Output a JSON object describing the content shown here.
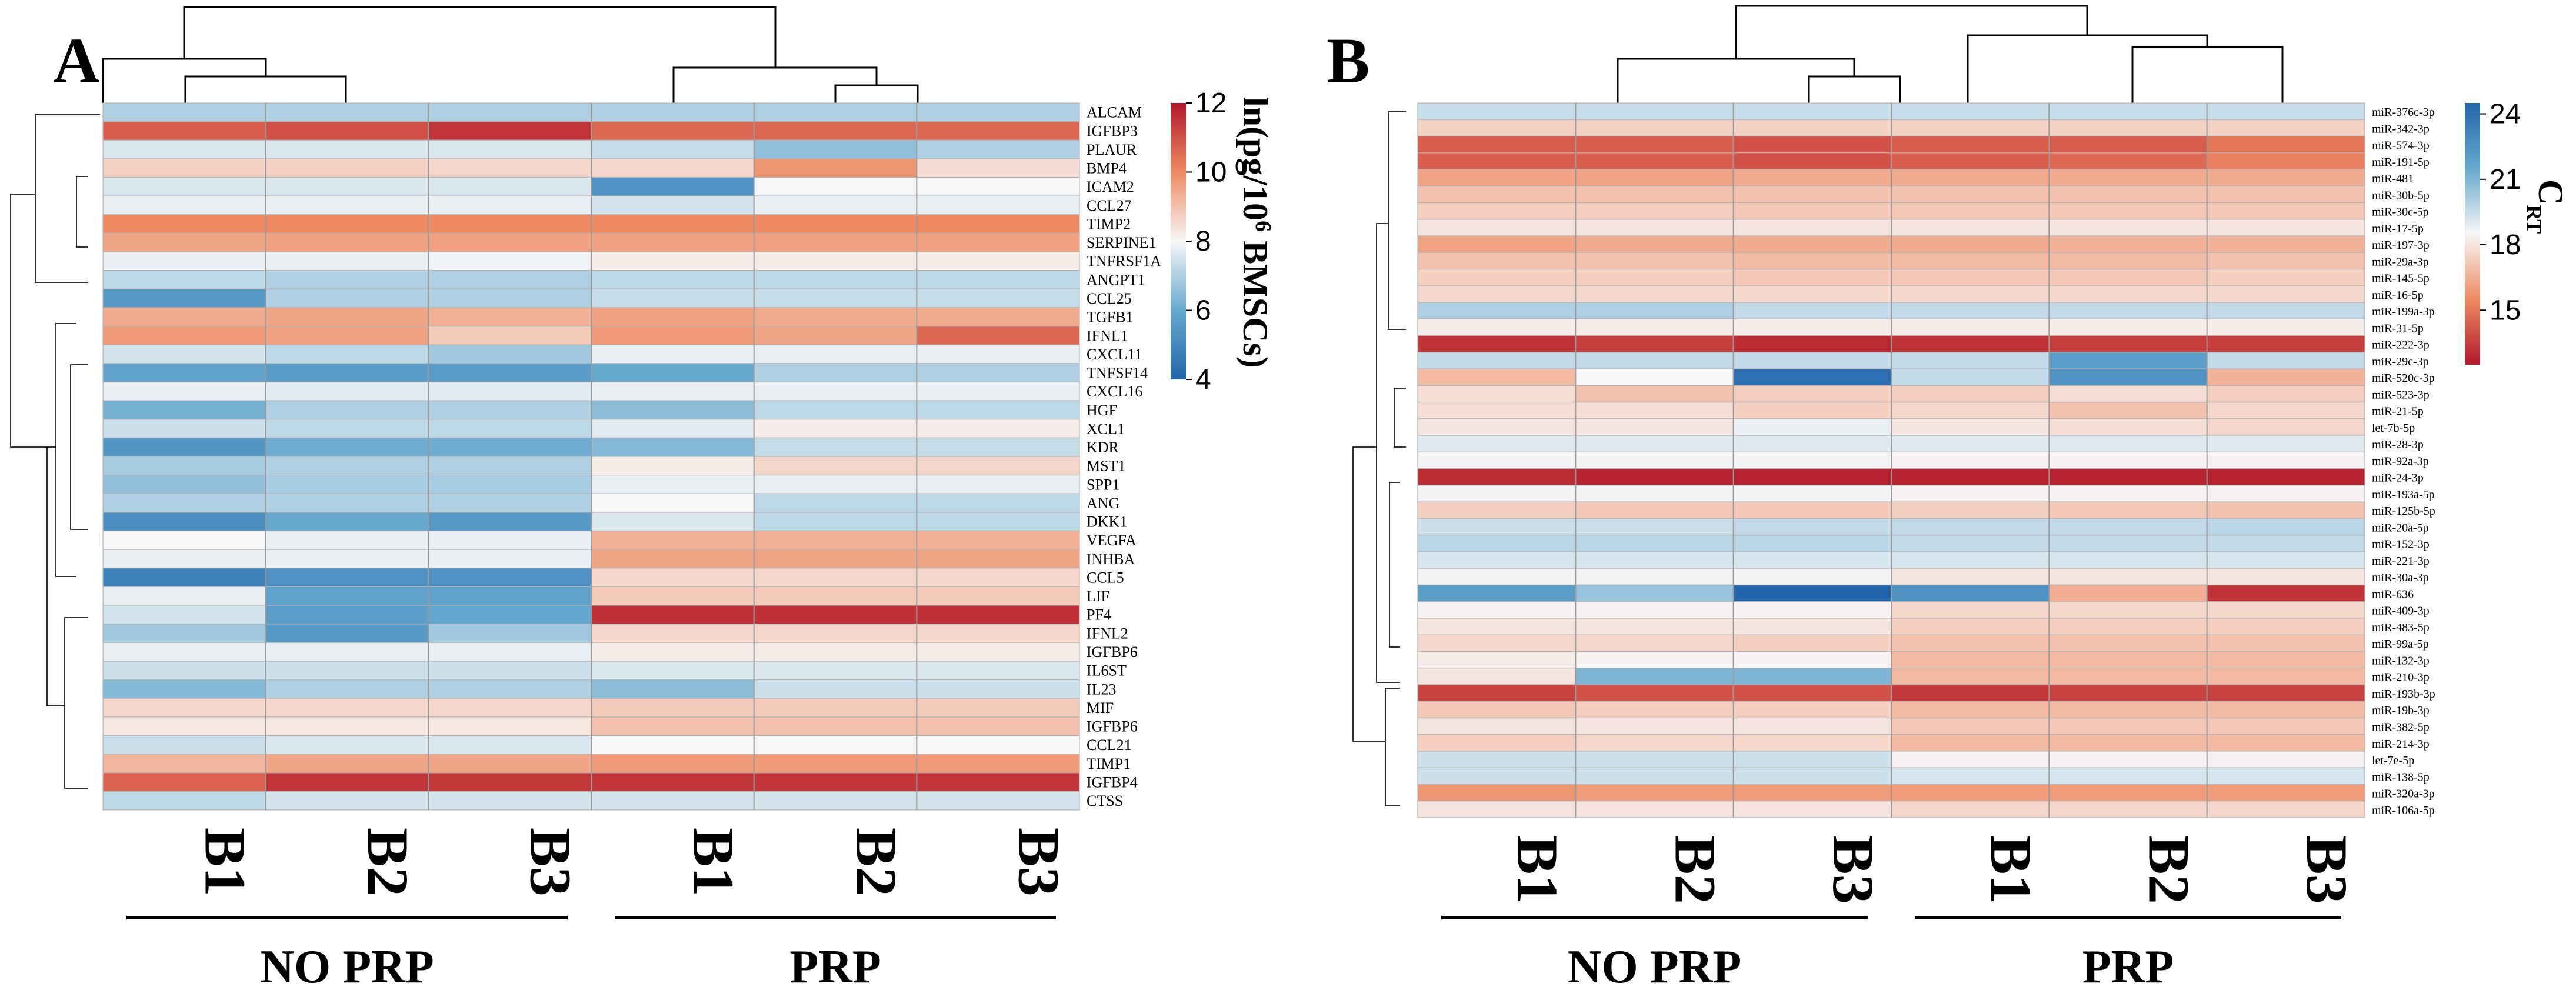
{
  "chart_data": [
    {
      "type": "heatmap",
      "panel": "A",
      "colorbar": {
        "title_main": "ln(pg/10",
        "title_sup": "6",
        "title_end": " BMSCs)",
        "ticks": [
          12,
          10,
          8,
          6,
          4
        ],
        "range": [
          4,
          12
        ],
        "direction": "high-red"
      },
      "columns": [
        "B1",
        "B2",
        "B3",
        "B1",
        "B2",
        "B3"
      ],
      "groups": [
        {
          "label": "NO PRP"
        },
        {
          "label": "PRP"
        }
      ],
      "rows": [
        {
          "label": "ALCAM",
          "values": [
            7.0,
            7.0,
            7.0,
            7.0,
            7.0,
            7.0
          ]
        },
        {
          "label": "IGFBP3",
          "values": [
            10.8,
            11.0,
            11.5,
            10.6,
            10.6,
            10.6
          ]
        },
        {
          "label": "PLAUR",
          "values": [
            7.6,
            7.6,
            7.6,
            7.3,
            6.6,
            7.0
          ]
        },
        {
          "label": "BMP4",
          "values": [
            8.7,
            8.7,
            8.6,
            8.6,
            9.8,
            8.5
          ]
        },
        {
          "label": "ICAM2",
          "values": [
            7.6,
            7.6,
            7.6,
            5.3,
            8.0,
            8.0
          ]
        },
        {
          "label": "CCL27",
          "values": [
            7.8,
            7.8,
            7.8,
            7.5,
            7.8,
            7.8
          ]
        },
        {
          "label": "TIMP2",
          "values": [
            10.0,
            10.0,
            10.0,
            10.0,
            10.0,
            10.0
          ]
        },
        {
          "label": "SERPINE1",
          "values": [
            9.5,
            9.6,
            9.6,
            9.6,
            9.6,
            9.6
          ]
        },
        {
          "label": "TNFRSF1A",
          "values": [
            7.8,
            7.8,
            7.9,
            8.2,
            8.2,
            8.2
          ]
        },
        {
          "label": "ANGPT1",
          "values": [
            7.2,
            7.0,
            7.0,
            7.2,
            7.2,
            7.2
          ]
        },
        {
          "label": "CCL25",
          "values": [
            5.5,
            7.0,
            7.0,
            7.3,
            7.3,
            7.3
          ]
        },
        {
          "label": "TGFB1",
          "values": [
            9.4,
            9.5,
            9.3,
            9.6,
            9.4,
            9.4
          ]
        },
        {
          "label": "IFNL1",
          "values": [
            9.7,
            9.6,
            8.8,
            9.7,
            9.5,
            10.6
          ]
        },
        {
          "label": "CXCL11",
          "values": [
            7.5,
            7.2,
            6.8,
            7.8,
            7.8,
            7.8
          ]
        },
        {
          "label": "TNFSF14",
          "values": [
            5.8,
            5.6,
            5.6,
            6.0,
            7.0,
            7.0
          ]
        },
        {
          "label": "CXCL16",
          "values": [
            7.8,
            7.7,
            7.7,
            7.8,
            7.8,
            7.8
          ]
        },
        {
          "label": "HGF",
          "values": [
            6.2,
            7.0,
            7.0,
            6.5,
            7.2,
            7.2
          ]
        },
        {
          "label": "XCL1",
          "values": [
            7.4,
            7.2,
            7.2,
            7.7,
            8.2,
            8.2
          ]
        },
        {
          "label": "KDR",
          "values": [
            5.4,
            6.1,
            6.1,
            6.4,
            7.3,
            7.3
          ]
        },
        {
          "label": "MST1",
          "values": [
            6.9,
            7.0,
            7.0,
            8.2,
            8.6,
            8.6
          ]
        },
        {
          "label": "SPP1",
          "values": [
            6.6,
            6.9,
            6.9,
            7.8,
            7.8,
            7.8
          ]
        },
        {
          "label": "ANG",
          "values": [
            7.0,
            7.0,
            7.0,
            8.0,
            7.2,
            7.2
          ]
        },
        {
          "label": "DKK1",
          "values": [
            5.2,
            6.0,
            5.5,
            7.6,
            7.2,
            7.2
          ]
        },
        {
          "label": "VEGFA",
          "values": [
            8.0,
            7.8,
            7.8,
            9.3,
            9.3,
            9.3
          ]
        },
        {
          "label": "INHBA",
          "values": [
            7.8,
            7.8,
            7.8,
            9.5,
            9.5,
            9.5
          ]
        },
        {
          "label": "CCL5",
          "values": [
            4.8,
            5.3,
            5.3,
            8.6,
            8.6,
            8.6
          ]
        },
        {
          "label": "LIF",
          "values": [
            7.8,
            5.8,
            5.8,
            8.8,
            8.8,
            8.8
          ]
        },
        {
          "label": "PF4",
          "values": [
            7.5,
            5.7,
            5.9,
            11.6,
            11.6,
            11.6
          ]
        },
        {
          "label": "IFNL2",
          "values": [
            6.8,
            5.5,
            6.8,
            8.6,
            8.6,
            8.6
          ]
        },
        {
          "label": "IGFBP6",
          "values": [
            7.8,
            7.8,
            7.8,
            8.2,
            8.2,
            8.2
          ]
        },
        {
          "label": "IL6ST",
          "values": [
            7.4,
            7.4,
            7.4,
            7.6,
            7.6,
            7.6
          ]
        },
        {
          "label": "IL23",
          "values": [
            6.4,
            7.0,
            7.0,
            6.5,
            7.4,
            7.4
          ]
        },
        {
          "label": "MIF",
          "values": [
            8.6,
            8.6,
            8.6,
            8.8,
            8.8,
            8.8
          ]
        },
        {
          "label": "IGFBP6",
          "values": [
            8.3,
            8.3,
            8.3,
            9.0,
            9.0,
            9.0
          ]
        },
        {
          "label": "CCL21",
          "values": [
            7.4,
            7.6,
            7.6,
            8.0,
            8.0,
            8.0
          ]
        },
        {
          "label": "TIMP1",
          "values": [
            9.2,
            9.5,
            9.5,
            9.7,
            9.7,
            9.7
          ]
        },
        {
          "label": "IGFBP4",
          "values": [
            10.7,
            11.5,
            11.4,
            11.5,
            11.5,
            11.5
          ]
        },
        {
          "label": "CTSS",
          "values": [
            7.2,
            7.5,
            7.5,
            7.5,
            7.5,
            7.5
          ]
        }
      ]
    },
    {
      "type": "heatmap",
      "panel": "B",
      "colorbar": {
        "title_main": "C",
        "title_sub": "RT",
        "ticks": [
          24,
          21,
          18,
          15
        ],
        "range": [
          12.5,
          24.5
        ],
        "direction": "high-blue"
      },
      "columns": [
        "B1",
        "B2",
        "B3",
        "B1",
        "B2",
        "B3"
      ],
      "groups": [
        {
          "label": "NO PRP"
        },
        {
          "label": "PRP"
        }
      ],
      "rows": [
        {
          "label": "miR-376c-3p",
          "values": [
            19.5,
            19.5,
            19.5,
            19.5,
            19.5,
            19.5
          ]
        },
        {
          "label": "miR-342-3p",
          "values": [
            17.5,
            17.5,
            17.5,
            17.5,
            17.5,
            17.5
          ]
        },
        {
          "label": "miR-574-3p",
          "values": [
            14.3,
            14.3,
            14.0,
            14.3,
            14.3,
            15.0
          ]
        },
        {
          "label": "miR-191-5p",
          "values": [
            14.3,
            14.3,
            14.0,
            14.3,
            14.6,
            15.2
          ]
        },
        {
          "label": "miR-481",
          "values": [
            16.2,
            16.2,
            16.4,
            16.4,
            16.4,
            16.4
          ]
        },
        {
          "label": "miR-30b-5p",
          "values": [
            17.0,
            17.0,
            17.0,
            17.0,
            17.0,
            17.0
          ]
        },
        {
          "label": "miR-30c-5p",
          "values": [
            17.4,
            17.4,
            17.2,
            17.2,
            17.2,
            17.2
          ]
        },
        {
          "label": "miR-17-5p",
          "values": [
            18.0,
            18.0,
            18.0,
            18.0,
            18.0,
            18.0
          ]
        },
        {
          "label": "miR-197-3p",
          "values": [
            16.2,
            16.4,
            16.4,
            16.4,
            16.6,
            16.6
          ]
        },
        {
          "label": "miR-29a-3p",
          "values": [
            17.0,
            17.0,
            16.8,
            16.8,
            16.8,
            17.0
          ]
        },
        {
          "label": "miR-145-5p",
          "values": [
            17.4,
            17.4,
            17.2,
            17.2,
            17.2,
            17.4
          ]
        },
        {
          "label": "miR-16-5p",
          "values": [
            17.6,
            17.6,
            17.6,
            17.6,
            17.6,
            17.6
          ]
        },
        {
          "label": "miR-199a-3p",
          "values": [
            20.0,
            20.0,
            19.6,
            19.6,
            19.6,
            19.6
          ]
        },
        {
          "label": "miR-31-5p",
          "values": [
            18.2,
            18.2,
            18.2,
            18.2,
            18.2,
            18.2
          ]
        },
        {
          "label": "miR-222-3p",
          "values": [
            13.2,
            13.5,
            13.0,
            13.2,
            13.5,
            13.5
          ]
        },
        {
          "label": "miR-29c-3p",
          "values": [
            19.6,
            19.6,
            19.6,
            19.6,
            22.0,
            19.6
          ]
        },
        {
          "label": "miR-520c-3p",
          "values": [
            16.8,
            18.5,
            24.0,
            19.6,
            22.5,
            16.6
          ]
        },
        {
          "label": "miR-523-3p",
          "values": [
            17.8,
            17.0,
            17.4,
            17.4,
            17.8,
            17.4
          ]
        },
        {
          "label": "miR-21-5p",
          "values": [
            17.8,
            17.8,
            17.4,
            17.6,
            17.0,
            17.6
          ]
        },
        {
          "label": "let-7b-5p",
          "values": [
            18.0,
            18.0,
            18.8,
            18.0,
            17.8,
            17.6
          ]
        },
        {
          "label": "miR-28-3p",
          "values": [
            19.0,
            19.0,
            19.0,
            19.0,
            19.0,
            19.0
          ]
        },
        {
          "label": "miR-92a-3p",
          "values": [
            18.6,
            18.6,
            18.6,
            18.4,
            18.4,
            18.4
          ]
        },
        {
          "label": "miR-24-3p",
          "values": [
            13.0,
            12.8,
            12.8,
            12.8,
            12.8,
            12.8
          ]
        },
        {
          "label": "miR-193a-5p",
          "values": [
            18.6,
            18.6,
            18.6,
            18.4,
            18.4,
            18.4
          ]
        },
        {
          "label": "miR-125b-5p",
          "values": [
            17.4,
            17.2,
            17.2,
            17.4,
            17.2,
            17.0
          ]
        },
        {
          "label": "miR-20a-5p",
          "values": [
            19.4,
            19.4,
            19.6,
            19.6,
            19.6,
            19.8
          ]
        },
        {
          "label": "miR-152-3p",
          "values": [
            19.8,
            19.8,
            19.8,
            19.6,
            19.6,
            19.6
          ]
        },
        {
          "label": "miR-221-3p",
          "values": [
            19.2,
            19.2,
            19.2,
            19.2,
            19.2,
            19.2
          ]
        },
        {
          "label": "miR-30a-3p",
          "values": [
            18.6,
            18.6,
            18.6,
            18.0,
            18.0,
            18.0
          ]
        },
        {
          "label": "miR-636",
          "values": [
            22.0,
            20.5,
            24.5,
            22.5,
            16.5,
            13.2
          ]
        },
        {
          "label": "miR-409-3p",
          "values": [
            18.4,
            18.4,
            18.4,
            17.6,
            17.6,
            17.6
          ]
        },
        {
          "label": "miR-483-5p",
          "values": [
            18.0,
            18.0,
            18.0,
            17.4,
            17.4,
            17.4
          ]
        },
        {
          "label": "miR-99a-5p",
          "values": [
            17.6,
            17.6,
            17.4,
            17.0,
            17.0,
            17.0
          ]
        },
        {
          "label": "miR-132-3p",
          "values": [
            18.2,
            18.4,
            18.4,
            16.8,
            16.8,
            16.8
          ]
        },
        {
          "label": "miR-210-3p",
          "values": [
            18.0,
            21.0,
            21.0,
            16.8,
            16.8,
            16.8
          ]
        },
        {
          "label": "miR-193b-3p",
          "values": [
            13.6,
            14.0,
            14.0,
            13.4,
            13.6,
            13.6
          ]
        },
        {
          "label": "miR-19b-3p",
          "values": [
            17.2,
            17.4,
            17.4,
            16.8,
            16.8,
            16.8
          ]
        },
        {
          "label": "miR-382-5p",
          "values": [
            18.0,
            18.0,
            18.0,
            17.2,
            17.2,
            17.2
          ]
        },
        {
          "label": "miR-214-3p",
          "values": [
            17.4,
            17.6,
            17.6,
            16.8,
            16.8,
            16.8
          ]
        },
        {
          "label": "let-7e-5p",
          "values": [
            19.4,
            19.4,
            19.4,
            18.4,
            18.4,
            18.4
          ]
        },
        {
          "label": "miR-138-5p",
          "values": [
            19.4,
            19.4,
            19.4,
            19.2,
            19.2,
            19.2
          ]
        },
        {
          "label": "miR-320a-3p",
          "values": [
            15.8,
            16.0,
            16.0,
            16.0,
            16.0,
            16.0
          ]
        },
        {
          "label": "miR-106a-5p",
          "values": [
            18.0,
            18.0,
            18.0,
            17.6,
            17.6,
            17.6
          ]
        }
      ]
    }
  ]
}
